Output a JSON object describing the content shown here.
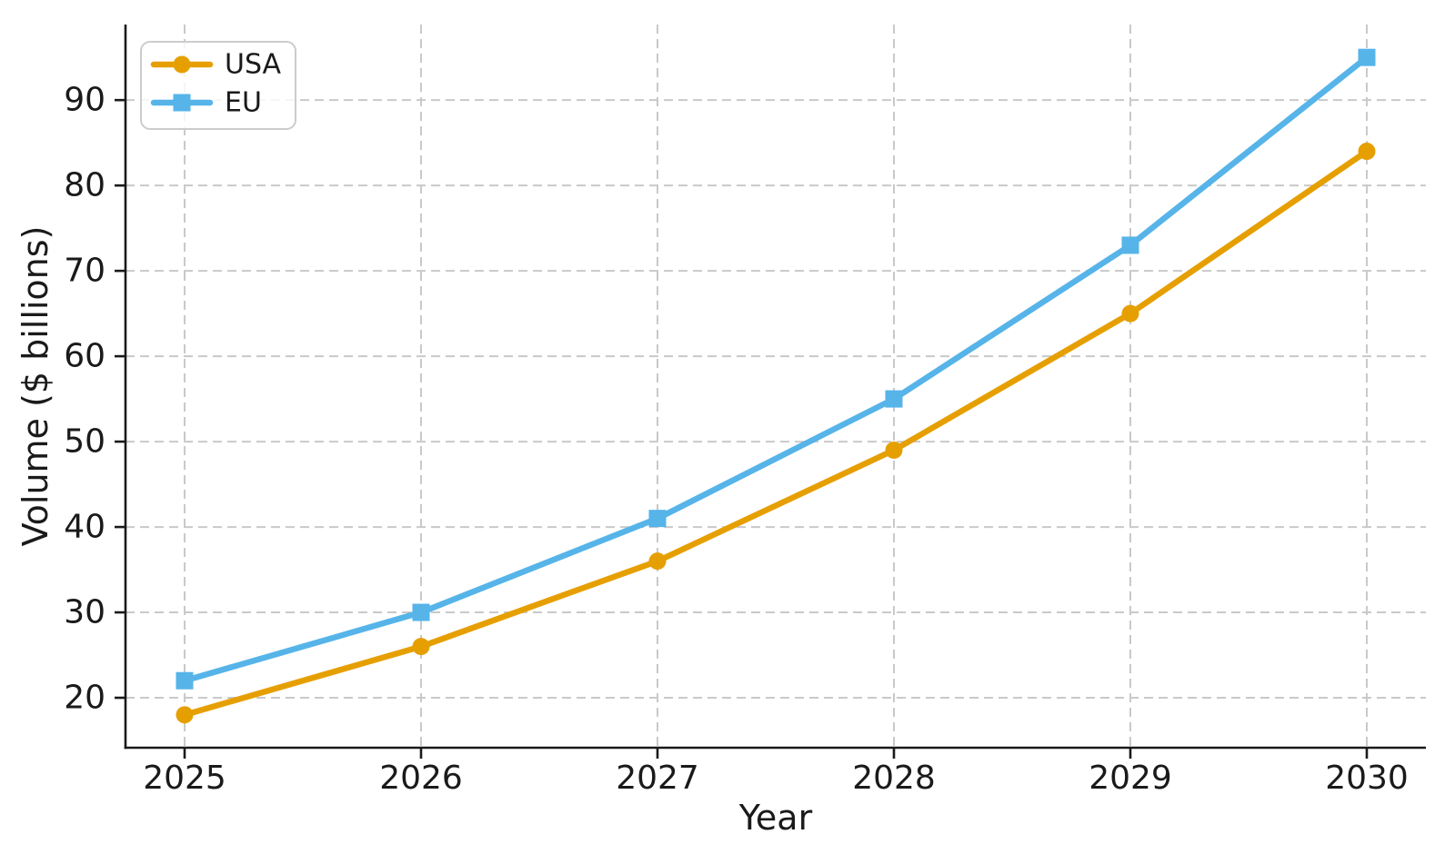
{
  "chart": {
    "xlabel": "Year",
    "ylabel": "Volume ($ billions)"
  },
  "chart_data": {
    "type": "line",
    "title": "",
    "xlabel": "Year",
    "ylabel": "Volume ($ billions)",
    "x": [
      2025,
      2026,
      2027,
      2028,
      2029,
      2030
    ],
    "series": [
      {
        "name": "USA",
        "values": [
          18,
          26,
          36,
          49,
          65,
          84
        ],
        "color": "#E69F00",
        "marker": "circle"
      },
      {
        "name": "EU",
        "values": [
          22,
          30,
          41,
          55,
          73,
          95
        ],
        "color": "#56B4E9",
        "marker": "square"
      }
    ],
    "xticks": [
      2025,
      2026,
      2027,
      2028,
      2029,
      2030
    ],
    "yticks": [
      20,
      30,
      40,
      50,
      60,
      70,
      80,
      90
    ],
    "xlim": [
      2024.75,
      2030.25
    ],
    "ylim": [
      14.15,
      98.85
    ],
    "grid": true,
    "grid_style": "dashed",
    "grid_color": "#c9c9c9",
    "axis_color": "#1a1a1a",
    "background": "#ffffff",
    "legend_position": "upper left",
    "legend": [
      "USA",
      "EU"
    ]
  }
}
